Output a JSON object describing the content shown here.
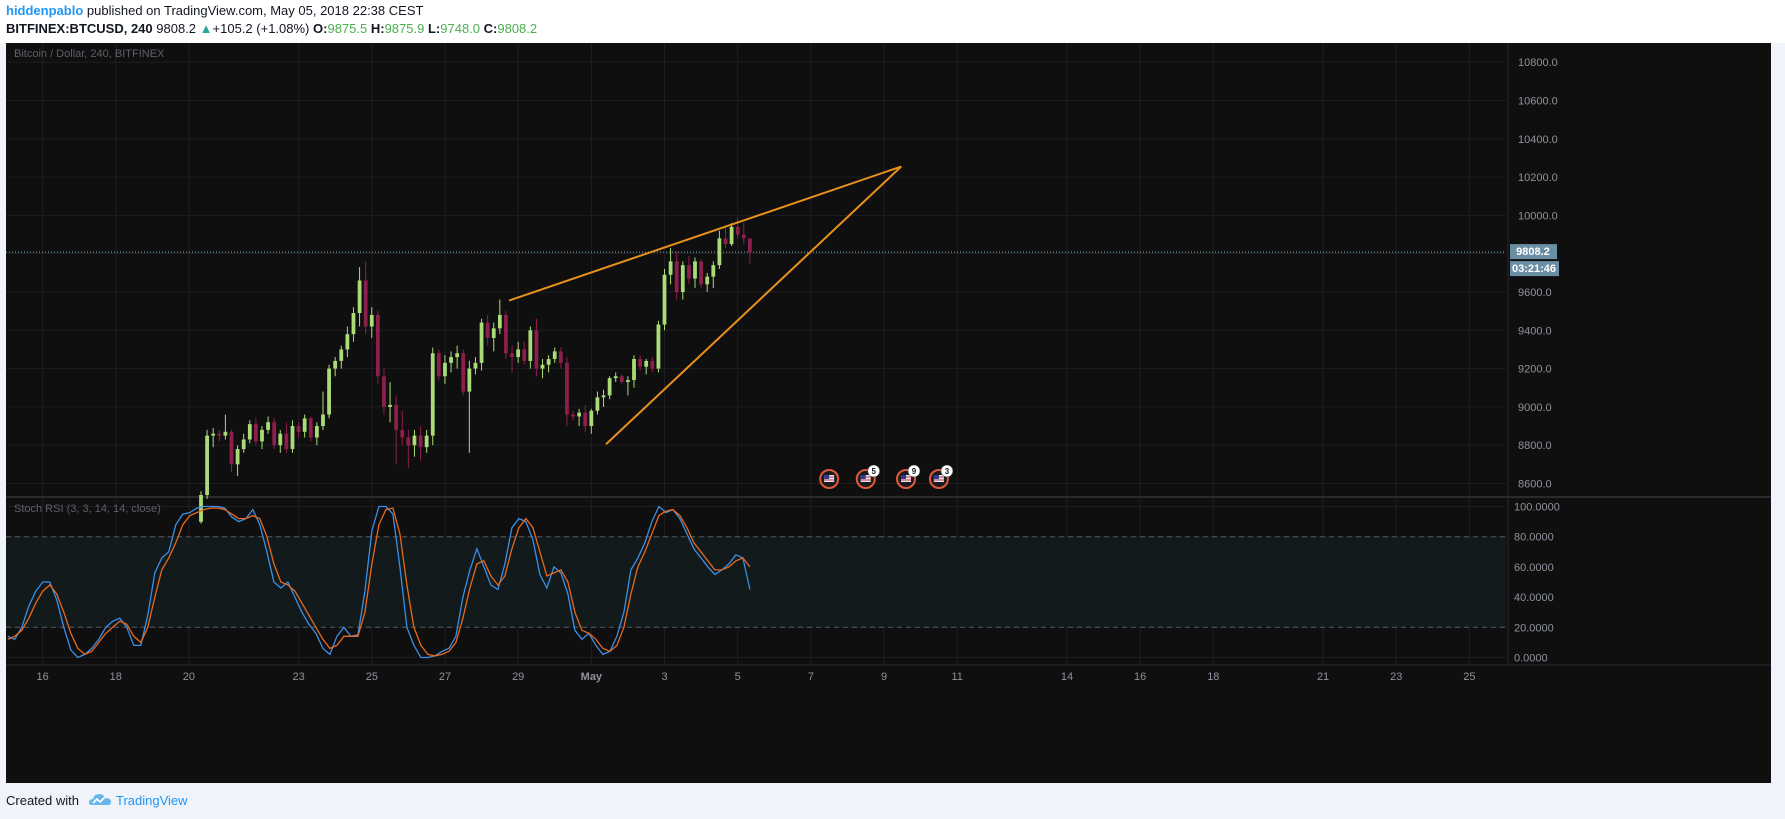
{
  "header": {
    "author": "hiddenpablo",
    "published_text": "published on TradingView.com, May 05, 2018 22:38 CEST",
    "symbol": "BITFINEX:BTCUSD, 240",
    "price": "9808.2",
    "change_arrow": "▲",
    "change": "+105.2 (+1.08%)",
    "o_label": "O:",
    "o_value": "9875.5",
    "h_label": "H:",
    "h_value": "9875.9",
    "l_label": "L:",
    "l_value": "9748.0",
    "c_label": "C:",
    "c_value": "9808.2"
  },
  "footer": {
    "created_with": "Created with",
    "brand": "TradingView"
  },
  "colors": {
    "background": "#0f0f0f",
    "up_candle": "#a9dc76",
    "down_candle": "#8c1f4b",
    "trendline": "#e8911b",
    "stoch_k": "#3a8fe6",
    "stoch_d": "#e8691b",
    "grid": "#1f1f22",
    "axis_text": "#8f939c",
    "price_tag": "#6a8ea3"
  },
  "chart_data": [
    {
      "type": "candlestick",
      "title": "Bitcoin / Dollar, 240, BITFINEX",
      "ylim": [
        8540,
        10900
      ],
      "y_ticks": [
        8600,
        8800,
        9000,
        9200,
        9400,
        9600,
        9800,
        10000,
        10200,
        10400,
        10600,
        10800
      ],
      "y_tick_labels": [
        "8600.0",
        "8800.0",
        "9000.0",
        "9200.0",
        "9400.0",
        "9600.0",
        "9800.0",
        "10000.0",
        "10200.0",
        "10400.0",
        "10600.0",
        "10800.0"
      ],
      "x_ticks": [
        {
          "label": "16",
          "day": 16
        },
        {
          "label": "18",
          "day": 18
        },
        {
          "label": "20",
          "day": 20
        },
        {
          "label": "23",
          "day": 23
        },
        {
          "label": "25",
          "day": 25
        },
        {
          "label": "27",
          "day": 27
        },
        {
          "label": "29",
          "day": 29
        },
        {
          "label": "May",
          "day": 31
        },
        {
          "label": "3",
          "day": 33
        },
        {
          "label": "5",
          "day": 35
        },
        {
          "label": "7",
          "day": 37
        },
        {
          "label": "9",
          "day": 39
        },
        {
          "label": "11",
          "day": 41
        },
        {
          "label": "14",
          "day": 44
        },
        {
          "label": "16",
          "day": 46
        },
        {
          "label": "18",
          "day": 48
        },
        {
          "label": "21",
          "day": 51
        },
        {
          "label": "23",
          "day": 53
        },
        {
          "label": "25",
          "day": 55
        }
      ],
      "x_range_days": [
        15.0,
        56.0
      ],
      "first_candle_day": 20.33,
      "candle_step_day": 0.1667,
      "candles": [
        [
          8400,
          8560,
          8390,
          8540
        ],
        [
          8540,
          8880,
          8520,
          8850
        ],
        [
          8850,
          8890,
          8790,
          8860
        ],
        [
          8860,
          8880,
          8820,
          8850
        ],
        [
          8850,
          8960,
          8830,
          8870
        ],
        [
          8870,
          8880,
          8660,
          8700
        ],
        [
          8700,
          8800,
          8640,
          8780
        ],
        [
          8780,
          8860,
          8760,
          8830
        ],
        [
          8830,
          8930,
          8810,
          8910
        ],
        [
          8910,
          8940,
          8800,
          8820
        ],
        [
          8820,
          8900,
          8780,
          8880
        ],
        [
          8880,
          8950,
          8860,
          8920
        ],
        [
          8920,
          8940,
          8780,
          8800
        ],
        [
          8800,
          8880,
          8760,
          8860
        ],
        [
          8860,
          8920,
          8760,
          8780
        ],
        [
          8780,
          8930,
          8760,
          8900
        ],
        [
          8900,
          8920,
          8840,
          8870
        ],
        [
          8870,
          8960,
          8840,
          8940
        ],
        [
          8940,
          8950,
          8820,
          8840
        ],
        [
          8840,
          8920,
          8800,
          8900
        ],
        [
          8900,
          9080,
          8880,
          8960
        ],
        [
          8960,
          9220,
          8940,
          9200
        ],
        [
          9200,
          9260,
          9160,
          9240
        ],
        [
          9240,
          9320,
          9200,
          9300
        ],
        [
          9300,
          9420,
          9260,
          9380
        ],
        [
          9380,
          9520,
          9340,
          9490
        ],
        [
          9490,
          9730,
          9420,
          9660
        ],
        [
          9660,
          9760,
          9380,
          9420
        ],
        [
          9420,
          9520,
          9360,
          9480
        ],
        [
          9480,
          9500,
          9120,
          9160
        ],
        [
          9160,
          9200,
          8960,
          9000
        ],
        [
          9000,
          9130,
          8920,
          9010
        ],
        [
          9010,
          9060,
          8700,
          8880
        ],
        [
          8880,
          8980,
          8800,
          8840
        ],
        [
          8840,
          8880,
          8680,
          8800
        ],
        [
          8800,
          8880,
          8740,
          8850
        ],
        [
          8850,
          8900,
          8720,
          8790
        ],
        [
          8790,
          8880,
          8760,
          8850
        ],
        [
          8850,
          9310,
          8800,
          9280
        ],
        [
          9280,
          9300,
          9140,
          9160
        ],
        [
          9160,
          9270,
          9120,
          9230
        ],
        [
          9230,
          9290,
          9180,
          9260
        ],
        [
          9260,
          9320,
          9200,
          9280
        ],
        [
          9280,
          9300,
          9060,
          9080
        ],
        [
          9080,
          9240,
          8760,
          9200
        ],
        [
          9200,
          9260,
          9170,
          9230
        ],
        [
          9230,
          9460,
          9190,
          9440
        ],
        [
          9440,
          9480,
          9320,
          9360
        ],
        [
          9360,
          9440,
          9290,
          9410
        ],
        [
          9410,
          9560,
          9380,
          9480
        ],
        [
          9480,
          9500,
          9250,
          9280
        ],
        [
          9280,
          9320,
          9180,
          9260
        ],
        [
          9260,
          9340,
          9230,
          9300
        ],
        [
          9300,
          9340,
          9220,
          9240
        ],
        [
          9240,
          9420,
          9200,
          9400
        ],
        [
          9400,
          9460,
          9160,
          9200
        ],
        [
          9200,
          9250,
          9150,
          9220
        ],
        [
          9220,
          9270,
          9180,
          9250
        ],
        [
          9250,
          9310,
          9230,
          9290
        ],
        [
          9290,
          9310,
          9200,
          9230
        ],
        [
          9230,
          9260,
          8900,
          8960
        ],
        [
          8960,
          8980,
          8930,
          8950
        ],
        [
          8950,
          8990,
          8900,
          8970
        ],
        [
          8970,
          9010,
          8870,
          8900
        ],
        [
          8900,
          8990,
          8860,
          8980
        ],
        [
          8980,
          9080,
          8960,
          9050
        ],
        [
          9050,
          9090,
          9000,
          9060
        ],
        [
          9060,
          9160,
          9040,
          9150
        ],
        [
          9150,
          9180,
          9130,
          9160
        ],
        [
          9160,
          9170,
          9120,
          9130
        ],
        [
          9130,
          9160,
          9060,
          9140
        ],
        [
          9140,
          9270,
          9100,
          9250
        ],
        [
          9250,
          9270,
          9190,
          9210
        ],
        [
          9210,
          9250,
          9170,
          9240
        ],
        [
          9240,
          9260,
          9180,
          9200
        ],
        [
          9200,
          9450,
          9180,
          9430
        ],
        [
          9430,
          9720,
          9400,
          9690
        ],
        [
          9690,
          9830,
          9640,
          9760
        ],
        [
          9760,
          9810,
          9560,
          9600
        ],
        [
          9600,
          9760,
          9560,
          9740
        ],
        [
          9740,
          9790,
          9640,
          9670
        ],
        [
          9670,
          9780,
          9620,
          9760
        ],
        [
          9760,
          9770,
          9620,
          9640
        ],
        [
          9640,
          9700,
          9600,
          9680
        ],
        [
          9680,
          9760,
          9620,
          9740
        ],
        [
          9740,
          9920,
          9720,
          9880
        ],
        [
          9880,
          9940,
          9830,
          9850
        ],
        [
          9850,
          9960,
          9840,
          9940
        ],
        [
          9940,
          9990,
          9880,
          9900
        ],
        [
          9900,
          9960,
          9850,
          9880
        ],
        [
          9880,
          9876,
          9748,
          9808
        ]
      ],
      "current_price": 9808.2,
      "current_price_label": "9808.2",
      "countdown_label": "03:21:46",
      "trendlines": [
        {
          "from": [
            28.75,
            9555
          ],
          "to": [
            39.47,
            10255
          ]
        },
        {
          "from": [
            31.4,
            8805
          ],
          "to": [
            39.47,
            10255
          ]
        }
      ],
      "events": [
        {
          "day": 37.5,
          "badge": ""
        },
        {
          "day": 38.5,
          "badge": "5"
        },
        {
          "day": 39.6,
          "badge": "9"
        },
        {
          "day": 40.5,
          "badge": "3"
        }
      ]
    },
    {
      "type": "line",
      "title": "Stoch RSI (3, 3, 14, 14, close)",
      "ylim": [
        -5,
        105
      ],
      "y_ticks": [
        0,
        20,
        40,
        60,
        80,
        100
      ],
      "y_tick_labels": [
        "0.0000",
        "20.0000",
        "40.0000",
        "60.0000",
        "80.0000",
        "100.0000"
      ],
      "band": [
        20,
        80
      ],
      "series": [
        {
          "key": "K",
          "values": [
            14,
            12,
            20,
            34,
            44,
            50,
            50,
            38,
            20,
            5,
            0,
            2,
            6,
            12,
            20,
            24,
            26,
            20,
            8,
            8,
            28,
            56,
            66,
            70,
            88,
            95,
            96,
            99,
            100,
            100,
            100,
            99,
            93,
            90,
            92,
            98,
            88,
            70,
            50,
            46,
            50,
            40,
            30,
            22,
            16,
            6,
            2,
            14,
            20,
            14,
            15,
            44,
            84,
            100,
            100,
            95,
            60,
            20,
            8,
            0,
            0,
            1,
            4,
            6,
            14,
            40,
            58,
            72,
            60,
            48,
            45,
            62,
            86,
            92,
            90,
            78,
            55,
            46,
            60,
            56,
            42,
            18,
            12,
            16,
            8,
            2,
            4,
            14,
            30,
            58,
            66,
            76,
            90,
            100,
            96,
            98,
            92,
            82,
            72,
            66,
            60,
            55,
            58,
            62,
            68,
            66,
            45
          ]
        },
        {
          "key": "D",
          "values": [
            12,
            14,
            18,
            26,
            36,
            44,
            48,
            42,
            30,
            16,
            6,
            2,
            4,
            10,
            16,
            20,
            24,
            22,
            14,
            10,
            20,
            40,
            58,
            66,
            76,
            88,
            94,
            96,
            98,
            99,
            99,
            98,
            95,
            92,
            92,
            94,
            92,
            80,
            62,
            50,
            48,
            44,
            36,
            28,
            20,
            12,
            6,
            8,
            14,
            14,
            14,
            30,
            62,
            88,
            98,
            99,
            82,
            48,
            20,
            8,
            2,
            1,
            2,
            4,
            10,
            26,
            46,
            62,
            64,
            54,
            48,
            54,
            72,
            86,
            92,
            86,
            70,
            54,
            56,
            58,
            50,
            30,
            18,
            16,
            12,
            6,
            4,
            8,
            20,
            42,
            60,
            70,
            82,
            94,
            97,
            98,
            94,
            86,
            76,
            70,
            64,
            58,
            58,
            60,
            64,
            66,
            60
          ]
        }
      ]
    }
  ]
}
